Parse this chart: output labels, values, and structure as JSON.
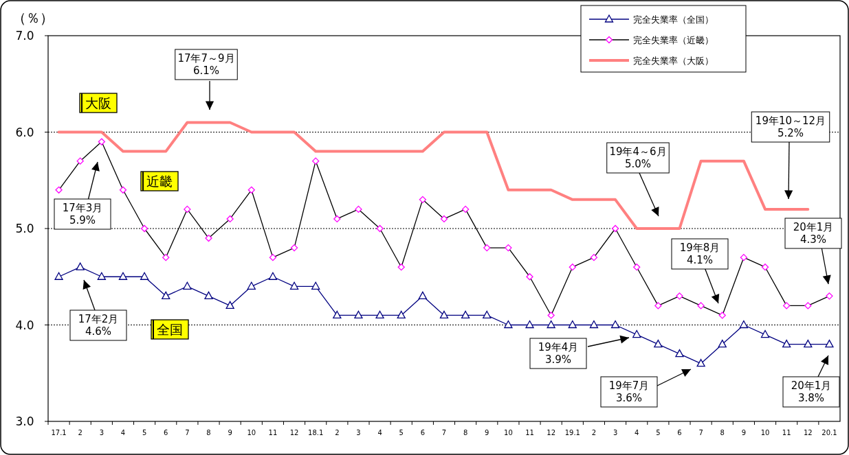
{
  "chart_data": {
    "type": "line",
    "ylabel": "（％）",
    "categories": [
      "17.1",
      "2",
      "3",
      "4",
      "5",
      "6",
      "7",
      "8",
      "9",
      "10",
      "11",
      "12",
      "18.1",
      "2",
      "3",
      "4",
      "5",
      "6",
      "7",
      "8",
      "9",
      "10",
      "11",
      "12",
      "19.1",
      "2",
      "3",
      "4",
      "5",
      "6",
      "7",
      "8",
      "9",
      "10",
      "11",
      "12",
      "20.1"
    ],
    "series": [
      {
        "name": "完全失業率（全国）",
        "color": "#000080",
        "marker": "triangle",
        "values": [
          4.5,
          4.6,
          4.5,
          4.5,
          4.5,
          4.3,
          4.4,
          4.3,
          4.2,
          4.4,
          4.5,
          4.4,
          4.4,
          4.1,
          4.1,
          4.1,
          4.1,
          4.3,
          4.1,
          4.1,
          4.1,
          4.0,
          4.0,
          4.0,
          4.0,
          4.0,
          4.0,
          3.9,
          3.8,
          3.7,
          3.6,
          3.8,
          4.0,
          3.9,
          3.8,
          3.8,
          3.8
        ]
      },
      {
        "name": "完全失業率（近畿）",
        "color": "#ff00ff",
        "marker": "diamond",
        "values": [
          5.4,
          5.7,
          5.9,
          5.4,
          5.0,
          4.7,
          5.2,
          4.9,
          5.1,
          5.4,
          4.7,
          4.8,
          5.7,
          5.1,
          5.2,
          5.0,
          4.6,
          5.3,
          5.1,
          5.2,
          4.8,
          4.8,
          4.5,
          4.1,
          4.6,
          4.7,
          5.0,
          4.6,
          4.2,
          4.3,
          4.2,
          4.1,
          4.7,
          4.6,
          4.2,
          4.2,
          4.3
        ]
      },
      {
        "name": "完全失業率（大阪）",
        "color": "#ff8080",
        "marker": "none",
        "values": [
          6.0,
          6.0,
          6.0,
          5.8,
          5.8,
          5.8,
          6.1,
          6.1,
          6.1,
          6.0,
          6.0,
          6.0,
          5.8,
          5.8,
          5.8,
          5.8,
          5.8,
          5.8,
          6.0,
          6.0,
          6.0,
          5.4,
          5.4,
          5.4,
          5.3,
          5.3,
          5.3,
          5.0,
          5.0,
          5.0,
          5.7,
          5.7,
          5.7,
          5.2,
          5.2,
          5.2,
          null
        ]
      }
    ],
    "ylim": [
      3,
      7
    ],
    "yticks": [
      {
        "value": 3,
        "label": "3.0"
      },
      {
        "value": 4,
        "label": "4.0"
      },
      {
        "value": 5,
        "label": "5.0"
      },
      {
        "value": 6,
        "label": "6.0"
      },
      {
        "value": 7,
        "label": "7.0"
      }
    ],
    "grid": "y",
    "legend": "top right",
    "annotations": [
      "17年7～9月\n6.1%",
      "17年3月\n5.9%",
      "17年2月\n4.6%",
      "19年4～6月\n5.0%",
      "19年10～12月\n5.2%",
      "20年1月\n4.3%",
      "19年8月\n4.1%",
      "19年4月\n3.9%",
      "19年7月\n3.6%",
      "20年1月\n3.8%",
      "大阪",
      "近畿",
      "全国"
    ]
  }
}
